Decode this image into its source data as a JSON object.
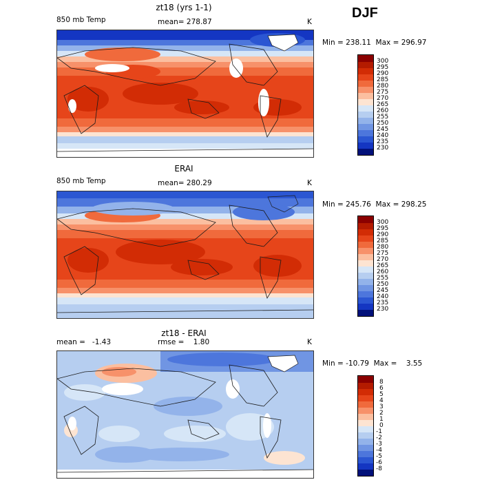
{
  "season": "DJF",
  "colors": {
    "warm": [
      "#8b0000",
      "#b41b00",
      "#d22c05",
      "#e6451a",
      "#f06a3c",
      "#f7916a",
      "#fbbfa0",
      "#fde4d2"
    ],
    "cool": [
      "#d6e6f7",
      "#b6cef0",
      "#93b3ea",
      "#7095e3",
      "#4d76dc",
      "#2b56d2",
      "#1436c2",
      "#0a1fa0",
      "#02117a"
    ],
    "land_line": "#1a1a1a",
    "missing": "#ffffff"
  },
  "panels": [
    {
      "title": "zt18 (yrs 1-1)",
      "left_label": "850 mb Temp",
      "mean_text": "mean= 278.87",
      "units": "K",
      "minmax": "Min = 238.11  Max = 296.97",
      "colorbar_labels": [
        "300",
        "295",
        "290",
        "285",
        "280",
        "275",
        "270",
        "265",
        "260",
        "255",
        "250",
        "245",
        "240",
        "235",
        "230"
      ]
    },
    {
      "title": "ERAI",
      "left_label": "850 mb Temp",
      "mean_text": "mean= 280.29",
      "units": "K",
      "minmax": "Min = 245.76  Max = 298.25",
      "colorbar_labels": [
        "300",
        "295",
        "290",
        "285",
        "280",
        "275",
        "270",
        "265",
        "260",
        "255",
        "250",
        "245",
        "240",
        "235",
        "230"
      ]
    },
    {
      "title": "zt18 - ERAI",
      "left_label": "mean =   -1.43",
      "mean_text": "rmse =    1.80",
      "units": "K",
      "minmax": "Min = -10.79  Max =    3.55",
      "colorbar_labels": [
        "8",
        "6",
        "5",
        "4",
        "3",
        "2",
        "1",
        "0",
        "-1",
        "-2",
        "-3",
        "-4",
        "-5",
        "-6",
        "-8"
      ]
    }
  ]
}
